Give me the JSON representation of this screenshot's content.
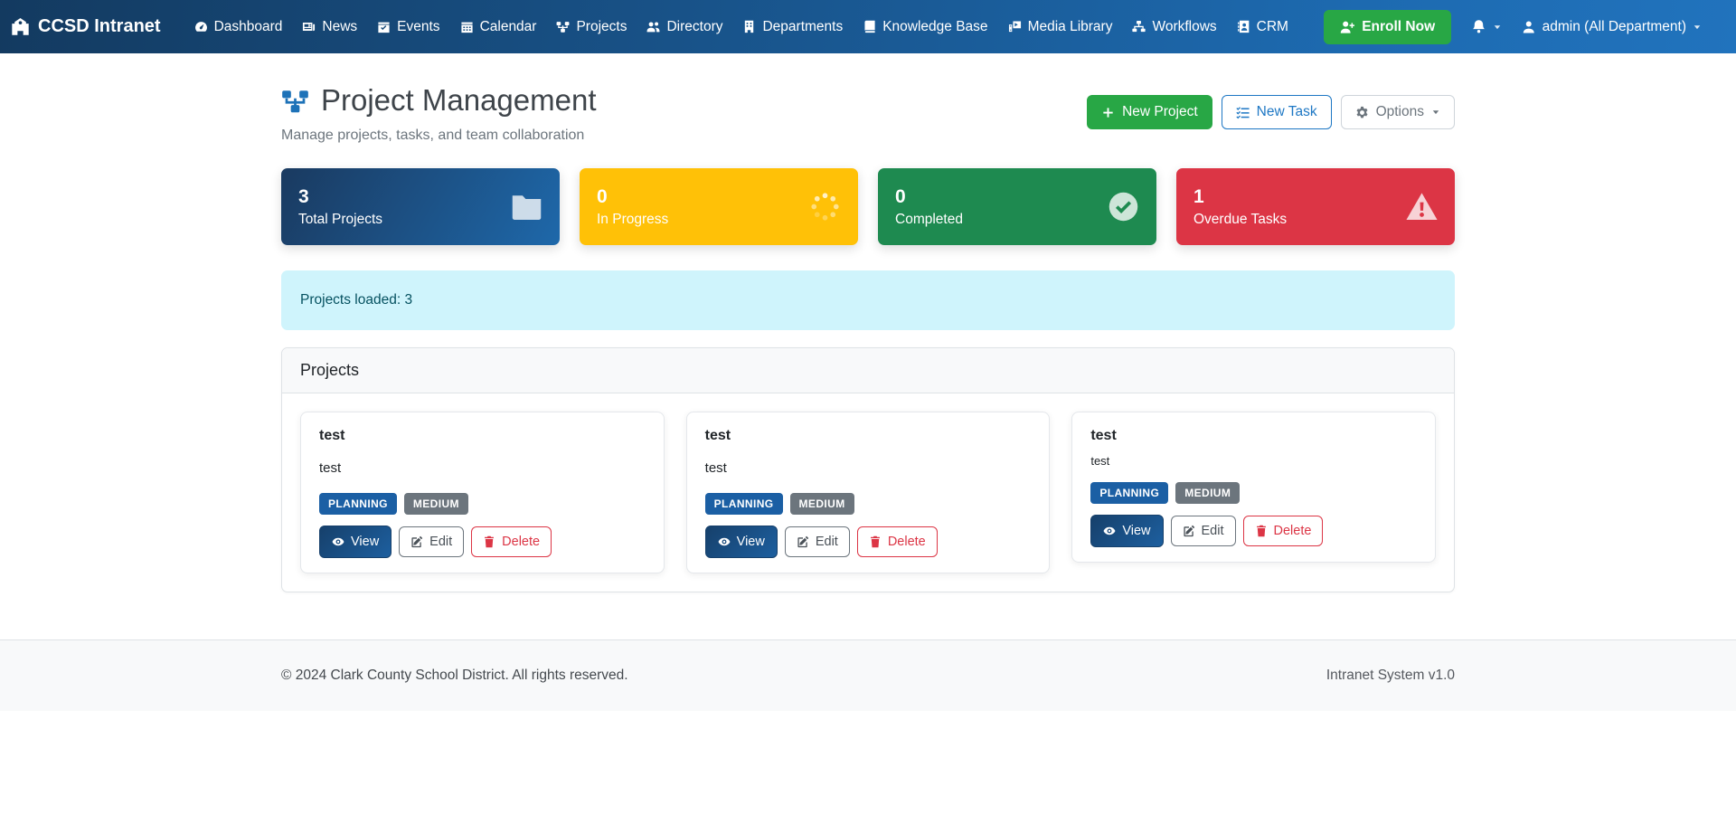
{
  "navbar": {
    "brand": {
      "label": "CCSD Intranet",
      "icon": "school-icon"
    },
    "items": [
      {
        "label": "Dashboard",
        "icon": "dashboard-icon"
      },
      {
        "label": "News",
        "icon": "news-icon"
      },
      {
        "label": "Events",
        "icon": "events-icon"
      },
      {
        "label": "Calendar",
        "icon": "calendar-icon"
      },
      {
        "label": "Projects",
        "icon": "projects-icon"
      },
      {
        "label": "Directory",
        "icon": "directory-icon"
      },
      {
        "label": "Departments",
        "icon": "departments-icon"
      },
      {
        "label": "Knowledge Base",
        "icon": "knowledge-base-icon"
      },
      {
        "label": "Media Library",
        "icon": "media-library-icon"
      },
      {
        "label": "Workflows",
        "icon": "workflows-icon"
      },
      {
        "label": "CRM",
        "icon": "crm-icon"
      }
    ],
    "enroll_button": {
      "label": "Enroll Now",
      "icon": "user-plus-icon"
    },
    "notifications": {
      "icon": "bell-icon",
      "caret_icon": "caret-down-icon"
    },
    "user_menu": {
      "label": "admin (All Department)",
      "icon": "user-icon",
      "caret_icon": "caret-down-icon"
    }
  },
  "header": {
    "title": "Project Management",
    "title_icon": "projects-icon",
    "subtitle": "Manage projects, tasks, and team collaboration",
    "buttons": {
      "new_project": {
        "label": "New Project",
        "icon": "plus-icon"
      },
      "new_task": {
        "label": "New Task",
        "icon": "tasks-icon"
      },
      "options": {
        "label": "Options",
        "icon": "gear-icon",
        "caret_icon": "caret-down-icon"
      }
    }
  },
  "stats": [
    {
      "value": "3",
      "label": "Total Projects",
      "icon": "folder-icon",
      "color": "#1e68aa"
    },
    {
      "value": "0",
      "label": "In Progress",
      "icon": "spinner-icon",
      "color": "#ffc107"
    },
    {
      "value": "0",
      "label": "Completed",
      "icon": "check-circle-icon",
      "color": "#1e8a50"
    },
    {
      "value": "1",
      "label": "Overdue Tasks",
      "icon": "warning-icon",
      "color": "#dc3545"
    }
  ],
  "alert": {
    "text": "Projects loaded: 3"
  },
  "projects_panel": {
    "title": "Projects",
    "projects": [
      {
        "name": "test",
        "description": "test",
        "status": "PLANNING",
        "priority": "MEDIUM",
        "actions": {
          "view": {
            "label": "View",
            "icon": "eye-icon"
          },
          "edit": {
            "label": "Edit",
            "icon": "edit-icon"
          },
          "delete": {
            "label": "Delete",
            "icon": "trash-icon"
          }
        }
      },
      {
        "name": "test",
        "description": "test",
        "status": "PLANNING",
        "priority": "MEDIUM",
        "actions": {
          "view": {
            "label": "View",
            "icon": "eye-icon"
          },
          "edit": {
            "label": "Edit",
            "icon": "edit-icon"
          },
          "delete": {
            "label": "Delete",
            "icon": "trash-icon"
          }
        }
      },
      {
        "name": "test",
        "description": "test",
        "status": "PLANNING",
        "priority": "MEDIUM",
        "actions": {
          "view": {
            "label": "View",
            "icon": "eye-icon"
          },
          "edit": {
            "label": "Edit",
            "icon": "edit-icon"
          },
          "delete": {
            "label": "Delete",
            "icon": "trash-icon"
          }
        }
      }
    ]
  },
  "footer": {
    "copyright": "© 2024 Clark County School District. All rights reserved.",
    "version": "Intranet System v1.0"
  }
}
